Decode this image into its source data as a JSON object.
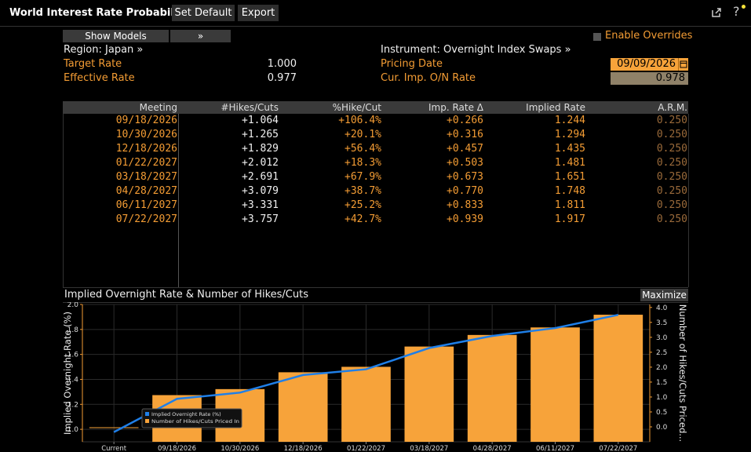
{
  "app": {
    "title": "World Interest Rate Probability"
  },
  "toolbar": {
    "set_default": "Set Default",
    "export": "Export",
    "help": "?"
  },
  "controls": {
    "show_models": "Show Models",
    "expand": "»",
    "enable_overrides": "Enable Overrides"
  },
  "info": {
    "region": "Region: Japan »",
    "instrument": "Instrument: Overnight Index Swaps »",
    "target_rate_label": "Target Rate",
    "target_rate_value": "1.000",
    "effective_rate_label": "Effective Rate",
    "effective_rate_value": "0.977",
    "pricing_date_label": "Pricing Date",
    "pricing_date_value": "09/09/2026",
    "cur_imp_label": "Cur. Imp. O/N Rate",
    "cur_imp_value": "0.978"
  },
  "table": {
    "headers": [
      "Meeting",
      "#Hikes/Cuts",
      "%Hike/Cut",
      "Imp. Rate Δ",
      "Implied Rate",
      "A.R.M."
    ],
    "rows": [
      [
        "09/18/2026",
        "+1.064",
        "+106.4%",
        "+0.266",
        "1.244",
        "0.250"
      ],
      [
        "10/30/2026",
        "+1.265",
        "+20.1%",
        "+0.316",
        "1.294",
        "0.250"
      ],
      [
        "12/18/2026",
        "+1.829",
        "+56.4%",
        "+0.457",
        "1.435",
        "0.250"
      ],
      [
        "01/22/2027",
        "+2.012",
        "+18.3%",
        "+0.503",
        "1.481",
        "0.250"
      ],
      [
        "03/18/2027",
        "+2.691",
        "+67.9%",
        "+0.673",
        "1.651",
        "0.250"
      ],
      [
        "04/28/2027",
        "+3.079",
        "+38.7%",
        "+0.770",
        "1.748",
        "0.250"
      ],
      [
        "06/11/2027",
        "+3.331",
        "+25.2%",
        "+0.833",
        "1.811",
        "0.250"
      ],
      [
        "07/22/2027",
        "+3.757",
        "+42.7%",
        "+0.939",
        "1.917",
        "0.250"
      ]
    ]
  },
  "chart": {
    "title": "Implied Overnight Rate & Number of Hikes/Cuts",
    "maximize": "Maximize"
  },
  "chart_data": {
    "type": "bar",
    "categories": [
      "Current",
      "09/18/2026",
      "10/30/2026",
      "12/18/2026",
      "01/22/2027",
      "03/18/2027",
      "04/28/2027",
      "06/11/2027",
      "07/22/2027"
    ],
    "series": [
      {
        "name": "Number of Hikes/Cuts Priced In",
        "type": "bar",
        "axis": "right",
        "values": [
          0,
          1.064,
          1.265,
          1.829,
          2.012,
          2.691,
          3.079,
          3.331,
          3.757
        ]
      },
      {
        "name": "Implied Overnight Rate (%)",
        "type": "line",
        "axis": "left",
        "values": [
          0.978,
          1.244,
          1.294,
          1.435,
          1.481,
          1.651,
          1.748,
          1.811,
          1.917
        ]
      }
    ],
    "ylabel": "Implied Overnight Rate (%)",
    "y2label": "Number of Hikes/Cuts Priced...",
    "ylim": [
      0.9,
      2.0
    ],
    "y2lim": [
      -0.5,
      4.1
    ],
    "yticks": [
      "1.0",
      "1.2",
      "1.4",
      "1.6",
      "1.8",
      "2.0"
    ],
    "y2ticks": [
      "0.0",
      "0.5",
      "1.0",
      "1.5",
      "2.0",
      "2.5",
      "3.0",
      "3.5",
      "4.0"
    ],
    "legend": [
      "Implied Overnight Rate (%)",
      "Number of Hikes/Cuts Priced In"
    ],
    "legend_position": "bottom-left",
    "colors": {
      "bar": "#f7a33a",
      "line": "#1f7fe8",
      "axis": "#f39c34"
    }
  }
}
